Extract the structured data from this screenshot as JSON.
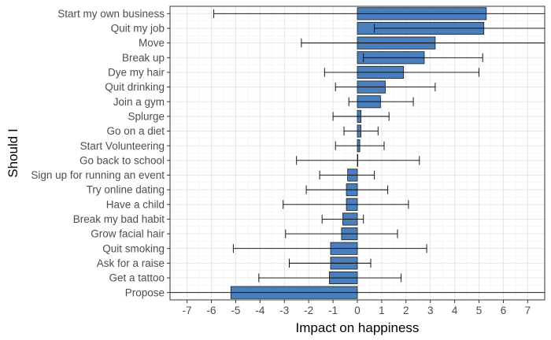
{
  "chart_data": {
    "type": "bar",
    "orientation": "horizontal",
    "title": "",
    "xlabel": "Impact on happiness",
    "ylabel": "Should I",
    "xlim": [
      -7.7,
      7.7
    ],
    "xticks": [
      -7,
      -6,
      -5,
      -4,
      -3,
      -2,
      -1,
      0,
      1,
      2,
      3,
      4,
      5,
      6,
      7
    ],
    "grid": true,
    "categories": [
      "Start my own business",
      "Quit my job",
      "Move",
      "Break up",
      "Dye my hair",
      "Quit drinking",
      "Join a gym",
      "Splurge",
      "Go on a diet",
      "Start Volunteering",
      "Go back to school",
      "Sign up for running an event",
      "Try online dating",
      "Have a child",
      "Break my bad habit",
      "Grow facial hair",
      "Quit smoking",
      "Ask for a raise",
      "Get a tattoo",
      "Propose"
    ],
    "values": [
      5.3,
      5.2,
      3.2,
      2.75,
      1.9,
      1.15,
      0.95,
      0.15,
      0.15,
      0.1,
      0.0,
      -0.4,
      -0.45,
      -0.45,
      -0.6,
      -0.65,
      -1.1,
      -1.1,
      -1.15,
      -5.2
    ],
    "error_low": [
      -5.9,
      0.7,
      -2.3,
      0.25,
      -1.35,
      -0.9,
      -0.35,
      -1.0,
      -0.55,
      -0.9,
      -2.5,
      -1.55,
      -2.1,
      -3.05,
      -1.45,
      -2.95,
      -5.1,
      -2.8,
      -4.05,
      -7.7
    ],
    "error_high": [
      7.7,
      7.7,
      7.7,
      5.15,
      5.0,
      3.2,
      2.3,
      1.3,
      0.85,
      1.1,
      2.55,
      0.7,
      1.25,
      2.1,
      0.25,
      1.65,
      2.85,
      0.55,
      1.8,
      7.7
    ],
    "colors": {
      "bar_fill": "#4a7fbb",
      "bar_stroke": "#1a1a1a",
      "grid_major": "#e3e3e3",
      "grid_minor": "#f1f1f1",
      "panel_border": "#333333",
      "error_bar": "#000000",
      "tick_color": "#333333"
    }
  }
}
